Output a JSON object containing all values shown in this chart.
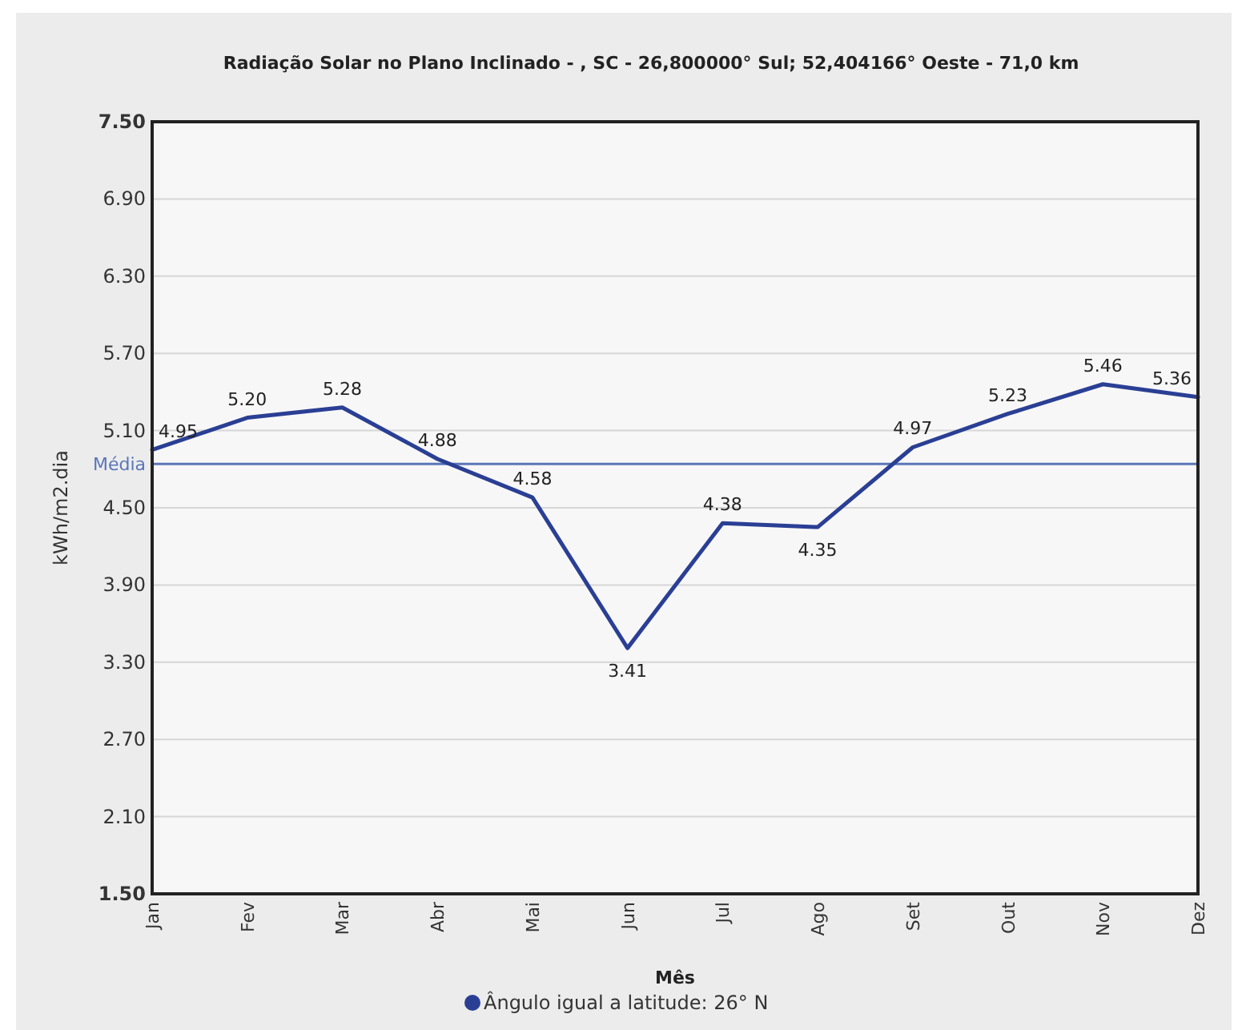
{
  "chart_data": {
    "type": "line",
    "title": "Radiação Solar no Plano Inclinado - , SC -  26,800000° Sul;  52,404166° Oeste - 71,0 km",
    "xlabel": "Mês",
    "ylabel": "kWh/m2.dia",
    "categories": [
      "Jan",
      "Fev",
      "Mar",
      "Abr",
      "Mai",
      "Jun",
      "Jul",
      "Ago",
      "Set",
      "Out",
      "Nov",
      "Dez"
    ],
    "series": [
      {
        "name": "Ângulo igual a latitude: 26° N",
        "color": "#2a3f94",
        "values": [
          4.95,
          5.2,
          5.28,
          4.88,
          4.58,
          3.41,
          4.38,
          4.35,
          4.97,
          5.23,
          5.46,
          5.36
        ],
        "value_labels": [
          "4.95",
          "5.20",
          "5.28",
          "4.88",
          "4.58",
          "3.41",
          "4.38",
          "4.35",
          "4.97",
          "5.23",
          "5.46",
          "5.36"
        ]
      }
    ],
    "ylim": [
      1.5,
      7.5
    ],
    "yticks": [
      "1.50",
      "2.10",
      "2.70",
      "3.30",
      "3.90",
      "4.50",
      "5.10",
      "5.70",
      "6.30",
      "6.90",
      "7.50"
    ],
    "ref_lines": [
      {
        "axis": "y",
        "value": 4.84,
        "label": "Média",
        "color": "#5b76b8"
      }
    ],
    "grid": "y",
    "legend": "bottom",
    "marker": "none",
    "line_style": "solid"
  }
}
